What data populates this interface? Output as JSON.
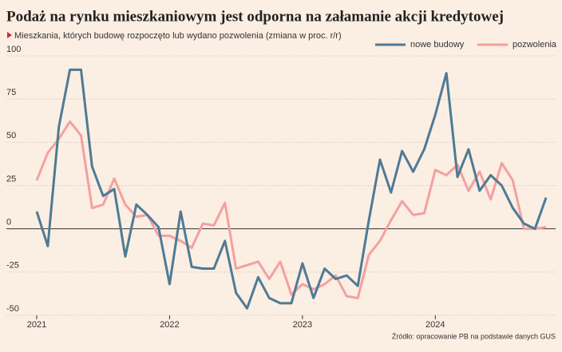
{
  "chart_data": {
    "type": "line",
    "title": "Podaż na rynku mieszkaniowym jest odporna na załamanie akcji kredytowej",
    "subtitle": "Mieszkania, których budowę rozpoczęto lub wydano pozwolenia (zmiana w proc. r/r)",
    "source": "Źródło: opracowanie PB na podstawie danych GUS",
    "categories": [
      "2021",
      null,
      null,
      null,
      null,
      null,
      null,
      null,
      null,
      null,
      null,
      null,
      "2022",
      null,
      null,
      null,
      null,
      null,
      null,
      null,
      null,
      null,
      null,
      null,
      "2023",
      null,
      null,
      null,
      null,
      null,
      null,
      null,
      null,
      null,
      null,
      null,
      "2024",
      null,
      null,
      null,
      null,
      null,
      null,
      null,
      null,
      null,
      null
    ],
    "series": [
      {
        "name": "nowe budowy",
        "color": "#4e7a96",
        "values": [
          10,
          -10,
          59,
          92,
          92,
          36,
          19,
          23,
          -16,
          14,
          8,
          1,
          -32,
          10,
          -22,
          -23,
          -23,
          -7,
          -37,
          -46,
          -28,
          -40,
          -43,
          -43,
          -20,
          -40,
          -23,
          -29,
          -27,
          -33,
          5,
          40,
          21,
          45,
          33,
          46,
          66,
          90,
          30,
          46,
          22,
          31,
          25,
          12,
          3,
          0,
          18
        ]
      },
      {
        "name": "pozwolenia",
        "color": "#f4a0a0",
        "values": [
          28,
          44,
          52,
          62,
          54,
          12,
          14,
          29,
          14,
          7,
          8,
          -4,
          -4,
          -7,
          -11,
          3,
          2,
          15,
          -23,
          -21,
          -19,
          -29,
          -19,
          -38,
          -32,
          -35,
          -32,
          -27,
          -39,
          -40,
          -15,
          -7,
          5,
          16,
          8,
          9,
          34,
          31,
          37,
          22,
          33,
          17,
          38,
          28,
          0,
          0,
          1
        ]
      }
    ],
    "ylim": [
      -50,
      100
    ],
    "yticks": [
      -50,
      -25,
      0,
      25,
      50,
      75,
      100
    ],
    "grid": true,
    "legend": "top-right"
  }
}
